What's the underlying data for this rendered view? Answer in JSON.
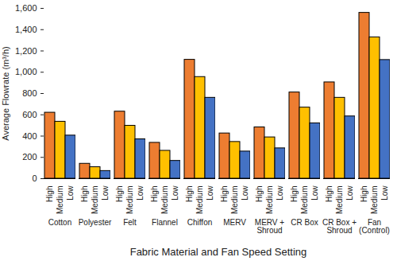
{
  "chart_data": {
    "type": "bar",
    "x_label": "Fabric Material and Fan Speed Setting",
    "y_label": "Average Flowrate (m³/h)",
    "categories": [
      "Cotton",
      "Polyester",
      "Felt",
      "Flannel",
      "Chiffon",
      "MERV",
      "MERV + Shroud",
      "CR Box",
      "CR Box + Shroud",
      "Fan (Control)"
    ],
    "series": [
      {
        "name": "High",
        "color": "#ed7d31",
        "values": [
          620,
          140,
          630,
          337,
          1117,
          425,
          482,
          810,
          905,
          1558
        ]
      },
      {
        "name": "Medium",
        "color": "#ffc000",
        "values": [
          535,
          108,
          497,
          262,
          955,
          345,
          388,
          668,
          760,
          1328
        ]
      },
      {
        "name": "Low",
        "color": "#4472c4",
        "values": [
          405,
          72,
          370,
          167,
          760,
          255,
          285,
          520,
          585,
          1115
        ]
      }
    ],
    "ylim": [
      0,
      1600
    ],
    "yticks": [
      0,
      200,
      400,
      600,
      800,
      1000,
      1200,
      1400,
      1600
    ],
    "grid": false
  }
}
